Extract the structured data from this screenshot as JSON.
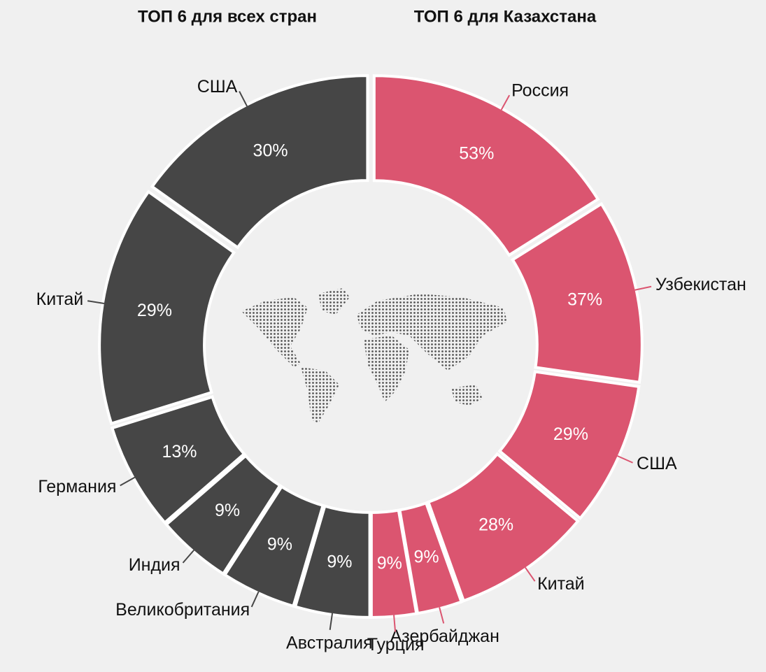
{
  "chart_data": [
    {
      "type": "pie",
      "title": "ТОП 6 для всех стран",
      "color": "#464646",
      "categories": [
        "США",
        "Китай",
        "Германия",
        "Индия",
        "Великобритания",
        "Австралия"
      ],
      "values": [
        30,
        29,
        13,
        9,
        9,
        9
      ],
      "value_labels": [
        "30%",
        "29%",
        "13%",
        "9%",
        "9%",
        "9%"
      ]
    },
    {
      "type": "pie",
      "title": "ТОП 6 для Казахстана",
      "color": "#db5570",
      "categories": [
        "Россия",
        "Узбекистан",
        "США",
        "Китай",
        "Азербайджан",
        "Турция"
      ],
      "values": [
        53,
        37,
        29,
        28,
        9,
        9
      ],
      "value_labels": [
        "53%",
        "37%",
        "29%",
        "28%",
        "9%",
        "9%"
      ]
    }
  ]
}
